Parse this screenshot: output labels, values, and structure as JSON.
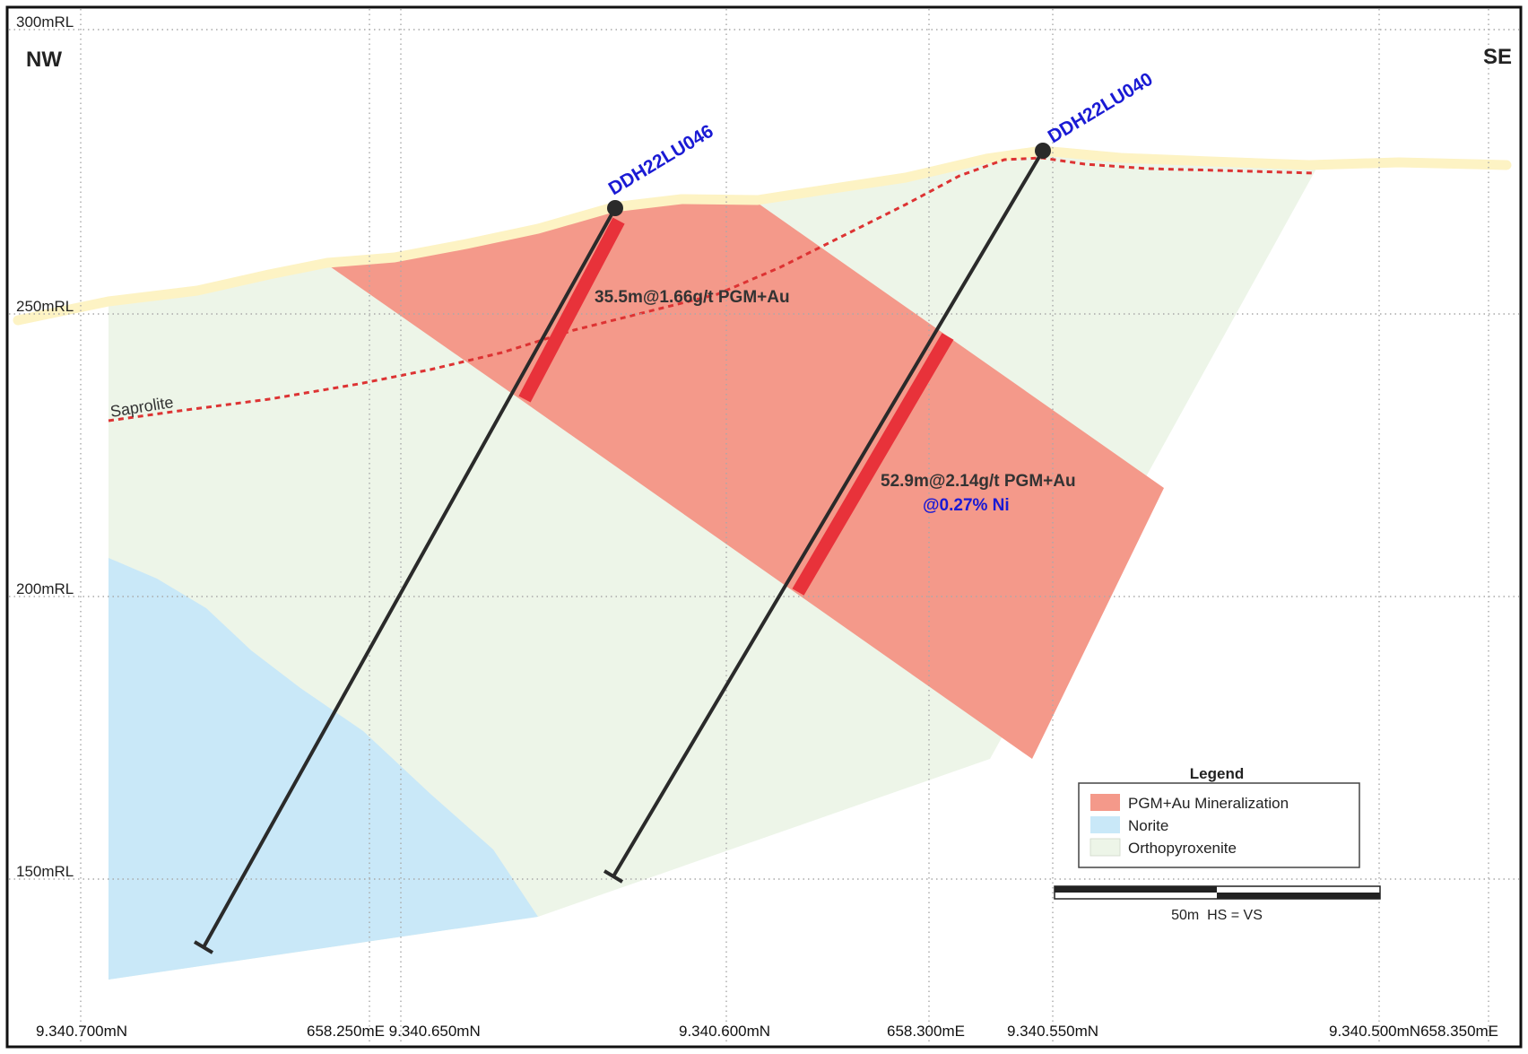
{
  "directions": {
    "left": "NW",
    "right": "SE"
  },
  "elevation_labels": [
    "300mRL",
    "250mRL",
    "200mRL",
    "150mRL"
  ],
  "coordinate_labels": [
    "9.340.700mN",
    "658.250mE 9.340.650mN",
    "9.340.600mN",
    "658.300mE",
    "9.340.550mN",
    "9.340.500mN658.350mE"
  ],
  "holes": [
    {
      "name": "DDH22LU046",
      "intercept": "35.5m@1.66g/t PGM+Au"
    },
    {
      "name": "DDH22LU040",
      "intercept": "52.9m@2.14g/t PGM+Au",
      "intercept_ni": "@0.27% Ni"
    }
  ],
  "saprolite_label": "Saprolite",
  "legend": {
    "title": "Legend",
    "items": [
      {
        "label": "PGM+Au Mineralization",
        "color": "#f4998a"
      },
      {
        "label": "Norite",
        "color": "#c9e8f8"
      },
      {
        "label": "Orthopyroxenite",
        "color": "#edf5e8"
      }
    ]
  },
  "scale_bar": {
    "label": "50m  HS = VS"
  },
  "colors": {
    "mineralization": "#f4998a",
    "norite": "#c9e8f8",
    "orthopyroxenite": "#edf5e8",
    "intercept_red": "#e8323a",
    "surface": "#fdf3c4",
    "hole_trace": "#2a2a2a",
    "hole_name_blue": "#1a1ad4",
    "saprolite_line": "#dd3333"
  }
}
